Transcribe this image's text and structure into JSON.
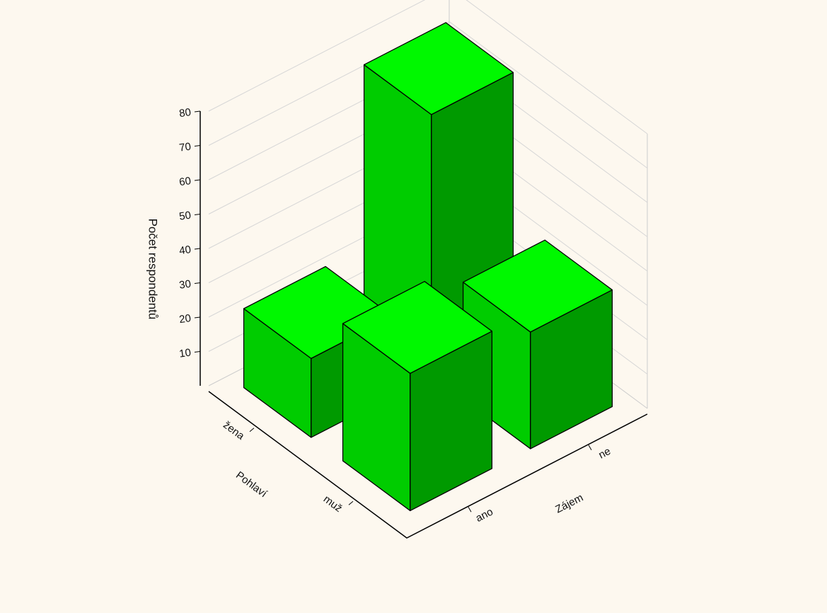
{
  "chart_data": {
    "type": "bar3d",
    "ylabel": "Počet respondentů",
    "xlabel": "Pohlaví",
    "zlabel": "Zájem",
    "categories": [
      "žena",
      "muž"
    ],
    "z_categories": [
      "ano",
      "ne"
    ],
    "values": [
      [
        23,
        76
      ],
      [
        40,
        34
      ]
    ],
    "color": "#00cc00",
    "ylim": [
      0,
      80
    ],
    "yticks": [
      10,
      20,
      30,
      40,
      50,
      60,
      70,
      80
    ],
    "grid": true
  }
}
